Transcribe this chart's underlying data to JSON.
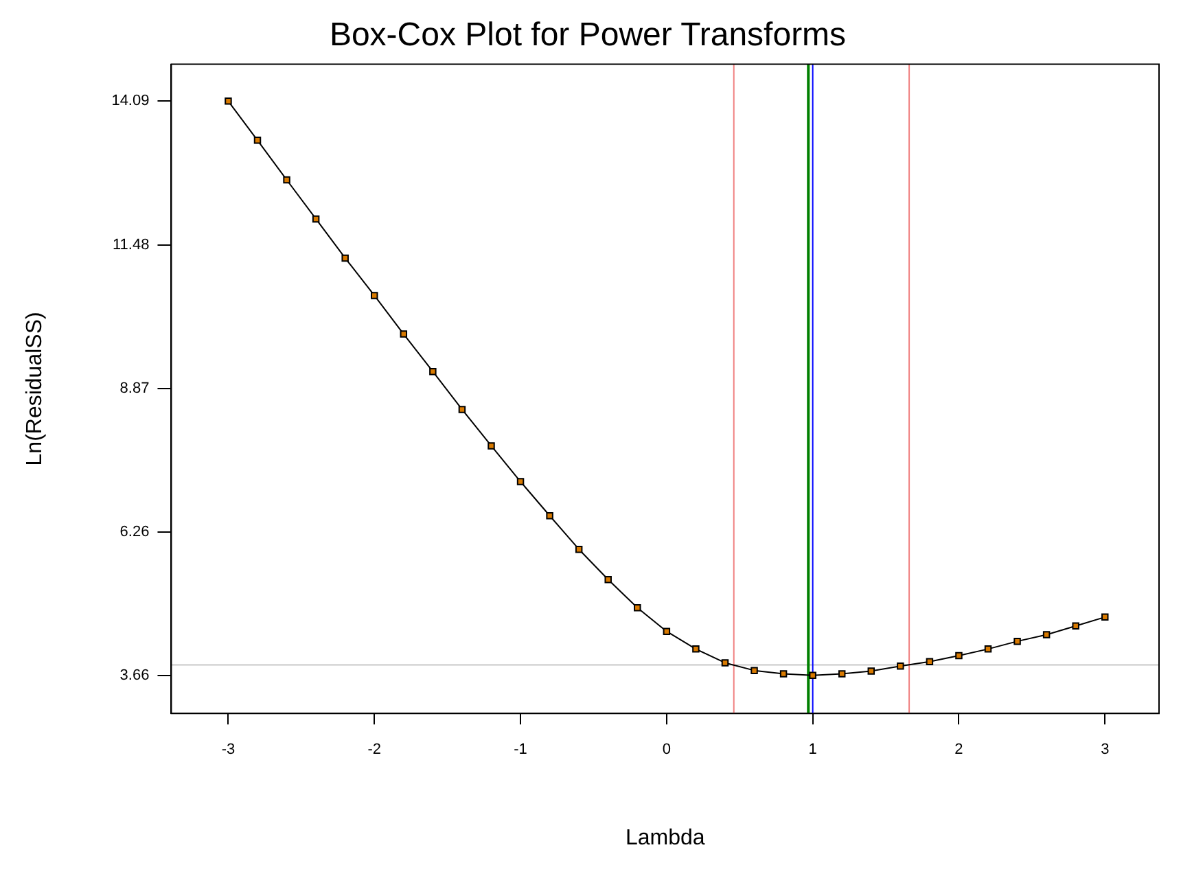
{
  "chart_data": {
    "type": "line",
    "title": "Box-Cox Plot for Power Transforms",
    "xlabel": "Lambda",
    "ylabel": "Ln(ResidualSS)",
    "x": [
      -3,
      -2.8,
      -2.6,
      -2.4,
      -2.2,
      -2,
      -1.8,
      -1.6,
      -1.4,
      -1.2,
      -1,
      -0.8,
      -0.6,
      -0.4,
      -0.2,
      0,
      0.2,
      0.4,
      0.6,
      0.8,
      1,
      1.2,
      1.4,
      1.6,
      1.8,
      2,
      2.2,
      2.4,
      2.6,
      2.8,
      3
    ],
    "series": [
      {
        "color": "#d97a00",
        "values": [
          14.09,
          13.38,
          12.66,
          11.95,
          11.24,
          10.56,
          9.86,
          9.18,
          8.49,
          7.83,
          7.18,
          6.56,
          5.95,
          5.4,
          4.89,
          4.46,
          4.14,
          3.89,
          3.75,
          3.69,
          3.66,
          3.69,
          3.74,
          3.83,
          3.91,
          4.02,
          4.14,
          4.28,
          4.4,
          4.56,
          4.72
        ]
      }
    ],
    "marker": "square",
    "grid": false,
    "legend": false,
    "xlim": [
      -3.39,
      3.37
    ],
    "xticks": [
      -3,
      -2,
      -1,
      0,
      1,
      2,
      3
    ],
    "ylim": [
      2.97,
      14.76
    ],
    "yticks": [
      3.66,
      6.26,
      8.87,
      11.48,
      14.09
    ],
    "ref_lines": [
      {
        "axis": "y",
        "value": 3.85,
        "color": "#c8c8c8"
      },
      {
        "axis": "x",
        "value": 0.46,
        "color": "#f08080"
      },
      {
        "axis": "x",
        "value": 1.66,
        "color": "#f08080"
      },
      {
        "axis": "x",
        "value": 1,
        "color": "#0000ff"
      },
      {
        "axis": "x",
        "value": 0.97,
        "color": "#008000"
      }
    ]
  }
}
